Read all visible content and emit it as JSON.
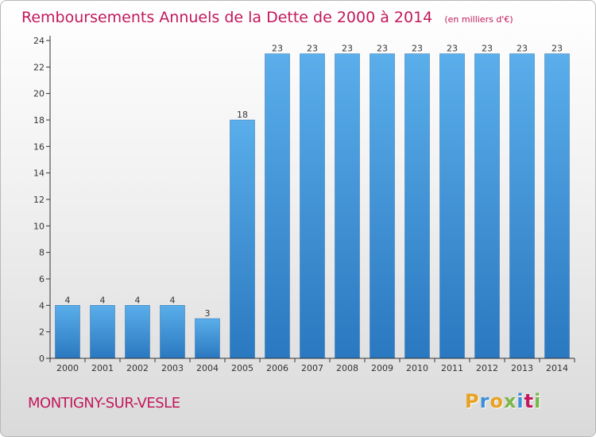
{
  "chart_data": {
    "type": "bar",
    "title": "Remboursements Annuels de la Dette de 2000 à 2014",
    "unit": "(en milliers d'€)",
    "categories": [
      "2000",
      "2001",
      "2002",
      "2003",
      "2004",
      "2005",
      "2006",
      "2007",
      "2008",
      "2009",
      "2010",
      "2011",
      "2012",
      "2013",
      "2014"
    ],
    "values": [
      4,
      4,
      4,
      4,
      3,
      18,
      23,
      23,
      23,
      23,
      23,
      23,
      23,
      23,
      23
    ],
    "ylim": [
      0,
      24
    ],
    "yticks": [
      0,
      2,
      4,
      6,
      8,
      10,
      12,
      14,
      16,
      18,
      20,
      22,
      24
    ],
    "xlabel": "",
    "ylabel": "",
    "grid": false,
    "bar_color": "#3b8fd8"
  },
  "footer": {
    "commune": "MONTIGNY-SUR-VESLE",
    "brand_letters": [
      "P",
      "r",
      "o",
      "x",
      "i",
      "t",
      "i"
    ],
    "brand_colors": [
      "#e8a21f",
      "#3b8fd8",
      "#e8a21f",
      "#7ab648",
      "#3b8fd8",
      "#c2185b",
      "#7ab648"
    ]
  },
  "colors": {
    "title": "#c2185b",
    "axis": "#333333"
  }
}
